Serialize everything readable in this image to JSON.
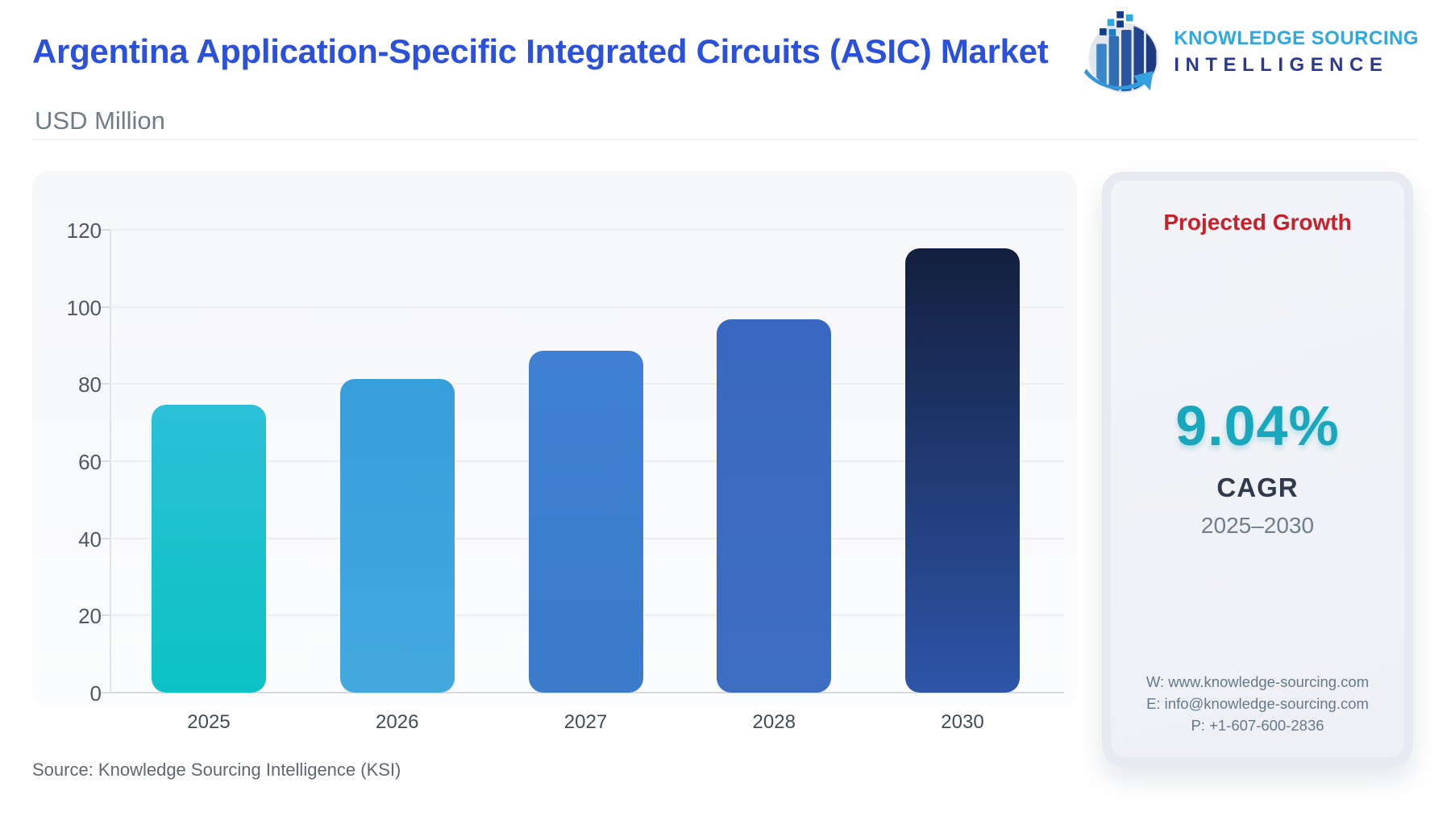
{
  "header": {
    "title": "Argentina Application-Specific Integrated Circuits (ASIC) Market",
    "unit_label": "USD Million"
  },
  "logo": {
    "line1": "KNOWLEDGE SOURCING",
    "line2": "INTELLIGENCE"
  },
  "panel": {
    "heading": "Projected Growth",
    "cagr_value": "9.04%",
    "cagr_label": "CAGR",
    "period": "2025–2030",
    "website": "W: www.knowledge-sourcing.com",
    "email": "E: info@knowledge-sourcing.com",
    "phone": "P: +1-607-600-2836"
  },
  "footer": {
    "source": "Source: Knowledge Sourcing Intelligence (KSI)"
  },
  "chart_data": {
    "type": "bar",
    "title": "Argentina Application-Specific Integrated Circuits (ASIC) Market",
    "ylabel": "USD Million",
    "xlabel": "",
    "categories": [
      "2025",
      "2026",
      "2027",
      "2028",
      "2030"
    ],
    "values": [
      74.6,
      81.4,
      88.7,
      96.8,
      115.1
    ],
    "ylim": [
      0,
      120
    ],
    "ytick_step": 20,
    "grid": true,
    "legend": false,
    "bar_colors": [
      [
        "#2BC0D6",
        "#0CC2C6"
      ],
      [
        "#379EDC",
        "#43A9DE"
      ],
      [
        "#3F80D3",
        "#3A7CCA"
      ],
      [
        "#3A68C0",
        "#3E6EC2"
      ],
      [
        "#131F3E",
        "#2E55A8"
      ]
    ]
  },
  "colors": {
    "title_blue": "#2B51DB",
    "subtitle_gray": "#6E7E89",
    "source_gray": "#5D6872",
    "red": "#C9202A",
    "teal": "#18A7BC",
    "dark": "#303A4D",
    "range_gray": "#6E7F8D",
    "contact_gray": "#66798A",
    "logo_blue": "#2FA7DF",
    "logo_indigo": "#2B3990"
  }
}
